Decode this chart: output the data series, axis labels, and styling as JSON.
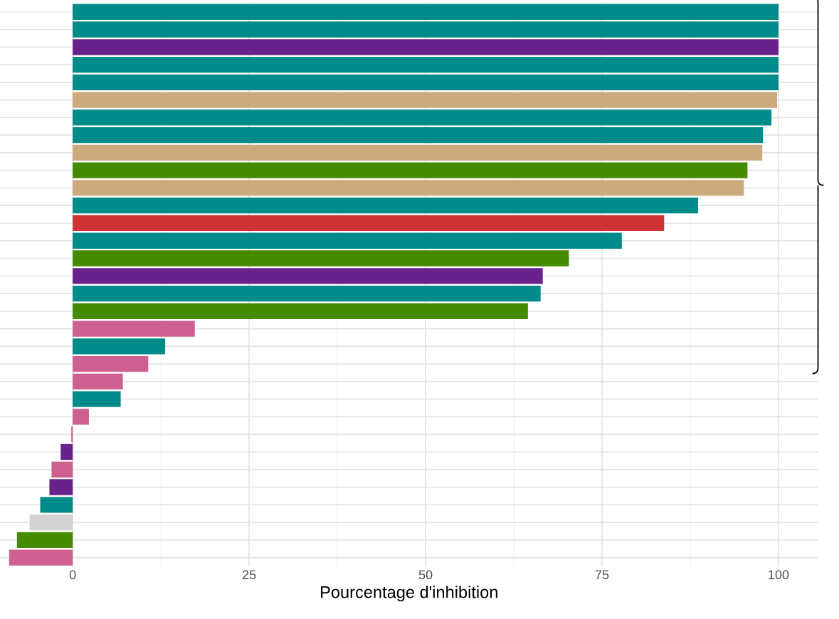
{
  "chart_data": {
    "type": "bar",
    "orientation": "horizontal",
    "xlabel": "Pourcentage d'inhibition",
    "categories": [
      null,
      null,
      null,
      null,
      null,
      null,
      null,
      null,
      null,
      null,
      null,
      null,
      null,
      null,
      null,
      null,
      null,
      null,
      null,
      null,
      null,
      null,
      null,
      null,
      null,
      null,
      null,
      null,
      null,
      null,
      null,
      null
    ],
    "values": [
      100,
      100,
      100,
      100,
      100,
      99.8,
      99.0,
      97.8,
      97.7,
      95.6,
      95.1,
      88.6,
      83.8,
      77.8,
      70.3,
      66.6,
      66.3,
      64.5,
      17.3,
      13.1,
      10.7,
      7.1,
      6.8,
      2.3,
      -0.2,
      -1.7,
      -3.0,
      -3.3,
      -4.6,
      -6.1,
      -7.9,
      -9.0
    ],
    "colors": [
      "#008b8b",
      "#008b8b",
      "#68228b",
      "#008b8b",
      "#008b8b",
      "#cdaa7d",
      "#008b8b",
      "#008b8b",
      "#cdaa7d",
      "#458b00",
      "#cdaa7d",
      "#008b8b",
      "#cd3333",
      "#008b8b",
      "#458b00",
      "#68228b",
      "#008b8b",
      "#458b00",
      "#cd6090",
      "#008b8b",
      "#cd6090",
      "#cd6090",
      "#008b8b",
      "#cd6090",
      "#cd6090",
      "#68228b",
      "#cd6090",
      "#68228b",
      "#008b8b",
      "#d3d3d3",
      "#458b00",
      "#cd6090"
    ],
    "xlim": [
      -10.3,
      105.6
    ],
    "xticks": [
      0,
      25,
      50,
      75,
      100
    ],
    "grid": true,
    "tick_labels": "x"
  }
}
